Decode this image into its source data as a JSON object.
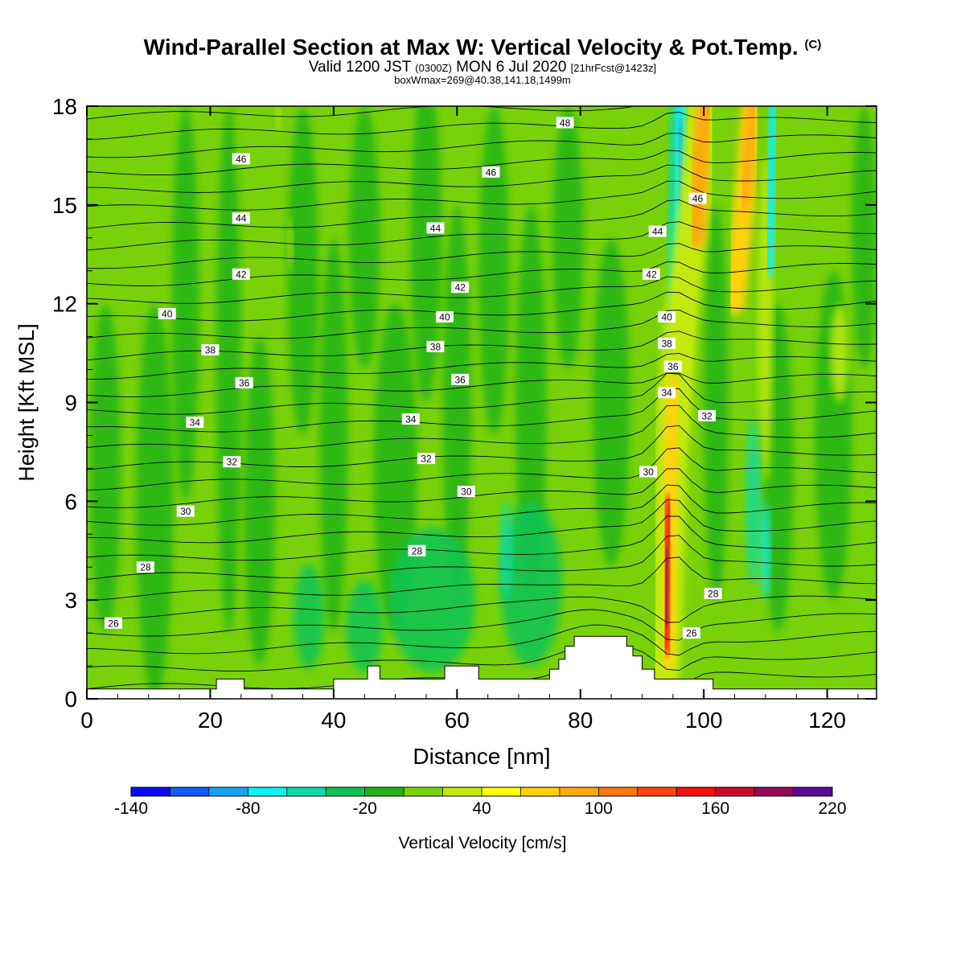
{
  "title": {
    "main": "Wind-Parallel Section at Max W: Vertical Velocity & Pot.Temp.",
    "copyright": "(C)",
    "valid_prefix": "Valid 1200 JST",
    "valid_utc": "(0300Z)",
    "valid_date": "MON 6 Jul 2020",
    "forecast": "[21hrFcst@1423z]",
    "box_info": "boxWmax=269@40.38,141.18,1499m"
  },
  "chart_data": {
    "type": "heatmap",
    "xlabel": "Distance [nm]",
    "ylabel": "Height [Kft MSL]",
    "xlim": [
      0,
      128
    ],
    "ylim": [
      0,
      18
    ],
    "xticks": [
      "0",
      "20",
      "40",
      "60",
      "80",
      "100",
      "120"
    ],
    "yticks": [
      "0",
      "3",
      "6",
      "9",
      "12",
      "15",
      "18"
    ],
    "grid": false,
    "legend": "colorbar-bottom",
    "colorbar": {
      "label": "Vertical Velocity [cm/s]",
      "min": -140,
      "max": 220,
      "step": 20,
      "tick_labels": [
        "-140",
        "-80",
        "-20",
        "40",
        "100",
        "160",
        "220"
      ],
      "colors": [
        "#0b0bf2",
        "#0f5cf5",
        "#16a3f4",
        "#0ff0f0",
        "#0ddca4",
        "#0ec454",
        "#20b418",
        "#78d20a",
        "#c4ea0c",
        "#ffff05",
        "#ffd20a",
        "#ffaa0a",
        "#ff780a",
        "#ff460a",
        "#f01010",
        "#c80a2a",
        "#960a5a",
        "#5a0a96"
      ]
    },
    "theta_contour_labels": [
      {
        "x": 4.3,
        "y": 2.3,
        "label": "26"
      },
      {
        "x": 9.5,
        "y": 4.0,
        "label": "28"
      },
      {
        "x": 16.0,
        "y": 5.7,
        "label": "30"
      },
      {
        "x": 23.5,
        "y": 7.2,
        "label": "32"
      },
      {
        "x": 17.5,
        "y": 8.4,
        "label": "34"
      },
      {
        "x": 25.5,
        "y": 9.6,
        "label": "36"
      },
      {
        "x": 20.0,
        "y": 10.6,
        "label": "38"
      },
      {
        "x": 13.0,
        "y": 11.7,
        "label": "40"
      },
      {
        "x": 25.0,
        "y": 12.9,
        "label": "42"
      },
      {
        "x": 25.0,
        "y": 14.6,
        "label": "44"
      },
      {
        "x": 25.0,
        "y": 16.4,
        "label": "46"
      },
      {
        "x": 53.5,
        "y": 4.5,
        "label": "28"
      },
      {
        "x": 61.5,
        "y": 6.3,
        "label": "30"
      },
      {
        "x": 55.0,
        "y": 7.3,
        "label": "32"
      },
      {
        "x": 52.5,
        "y": 8.5,
        "label": "34"
      },
      {
        "x": 60.5,
        "y": 9.7,
        "label": "36"
      },
      {
        "x": 56.5,
        "y": 10.7,
        "label": "38"
      },
      {
        "x": 58.0,
        "y": 11.6,
        "label": "40"
      },
      {
        "x": 60.5,
        "y": 12.5,
        "label": "42"
      },
      {
        "x": 56.5,
        "y": 14.3,
        "label": "44"
      },
      {
        "x": 65.5,
        "y": 16.0,
        "label": "46"
      },
      {
        "x": 77.5,
        "y": 17.5,
        "label": "48"
      },
      {
        "x": 99.0,
        "y": 15.2,
        "label": "46"
      },
      {
        "x": 92.5,
        "y": 14.2,
        "label": "44"
      },
      {
        "x": 91.5,
        "y": 12.9,
        "label": "42"
      },
      {
        "x": 94.0,
        "y": 11.6,
        "label": "40"
      },
      {
        "x": 94.0,
        "y": 10.8,
        "label": "38"
      },
      {
        "x": 95.0,
        "y": 10.1,
        "label": "36"
      },
      {
        "x": 94.0,
        "y": 9.3,
        "label": "34"
      },
      {
        "x": 100.5,
        "y": 8.6,
        "label": "32"
      },
      {
        "x": 91.0,
        "y": 6.9,
        "label": "30"
      },
      {
        "x": 101.5,
        "y": 3.2,
        "label": "28"
      },
      {
        "x": 98.0,
        "y": 2.0,
        "label": "26"
      }
    ],
    "terrain": [
      [
        0,
        0.3
      ],
      [
        21,
        0.3
      ],
      [
        21,
        0.6
      ],
      [
        25.5,
        0.6
      ],
      [
        25.5,
        0.3
      ],
      [
        40,
        0.3
      ],
      [
        40,
        0.6
      ],
      [
        45.5,
        0.6
      ],
      [
        45.5,
        1.0
      ],
      [
        47.5,
        1.0
      ],
      [
        47.5,
        0.6
      ],
      [
        58,
        0.6
      ],
      [
        58,
        1.0
      ],
      [
        63.5,
        1.0
      ],
      [
        63.5,
        0.6
      ],
      [
        75,
        0.6
      ],
      [
        75,
        0.9
      ],
      [
        76.5,
        0.9
      ],
      [
        76.5,
        1.2
      ],
      [
        77.5,
        1.2
      ],
      [
        77.5,
        1.6
      ],
      [
        79,
        1.6
      ],
      [
        79,
        1.9
      ],
      [
        87.5,
        1.9
      ],
      [
        87.5,
        1.6
      ],
      [
        88.5,
        1.6
      ],
      [
        88.5,
        1.3
      ],
      [
        90,
        1.3
      ],
      [
        90,
        0.9
      ],
      [
        92,
        0.9
      ],
      [
        92,
        0.6
      ],
      [
        101.5,
        0.6
      ],
      [
        101.5,
        0.3
      ],
      [
        128,
        0.3
      ]
    ]
  }
}
